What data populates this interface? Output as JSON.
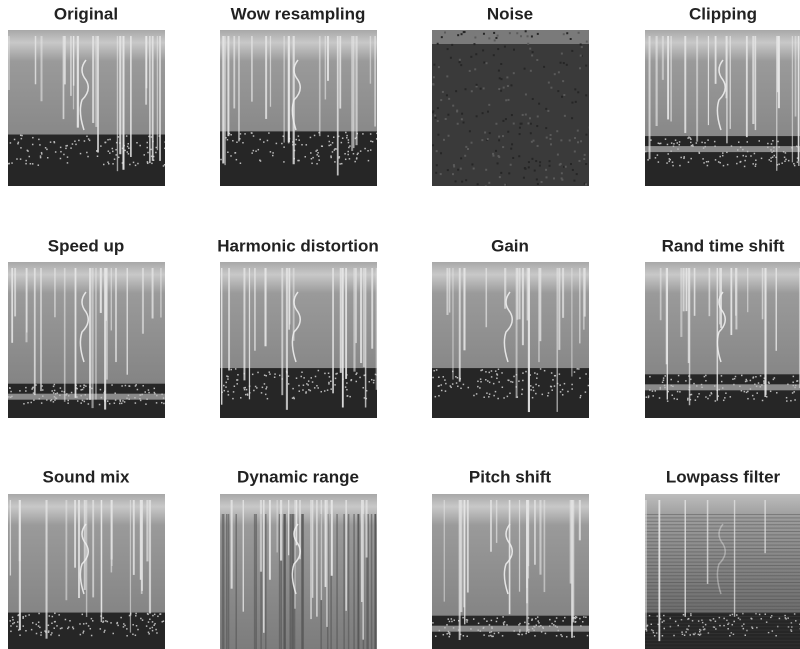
{
  "panels": [
    {
      "title": "Original"
    },
    {
      "title": "Wow resampling"
    },
    {
      "title": "Noise"
    },
    {
      "title": "Clipping"
    },
    {
      "title": "Speed up"
    },
    {
      "title": "Harmonic distortion"
    },
    {
      "title": "Gain"
    },
    {
      "title": "Rand time shift"
    },
    {
      "title": "Sound mix"
    },
    {
      "title": "Dynamic range"
    },
    {
      "title": "Pitch shift"
    },
    {
      "title": "Lowpass filter"
    }
  ]
}
